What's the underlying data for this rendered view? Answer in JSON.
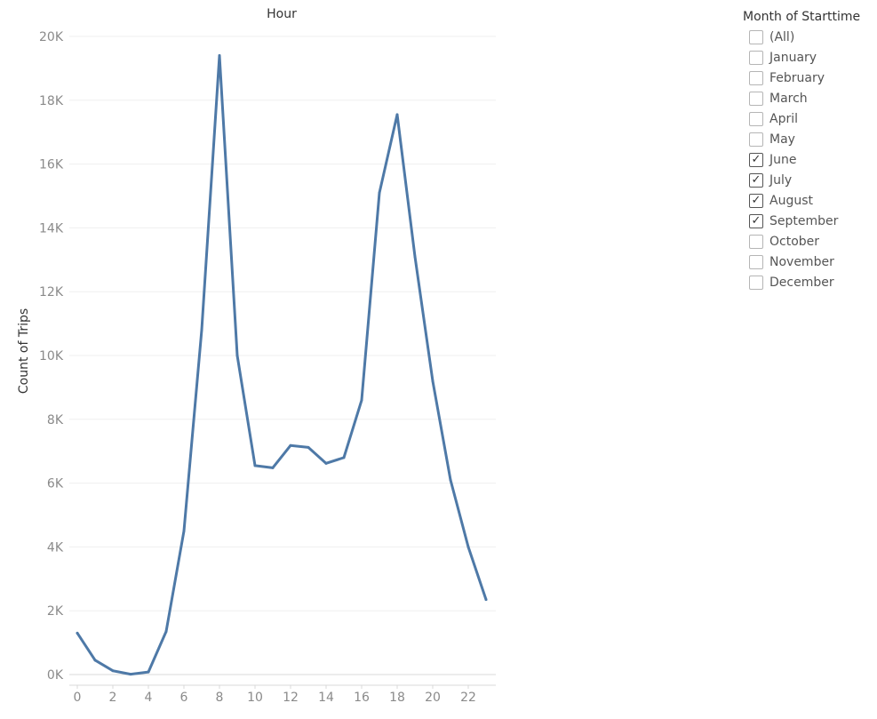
{
  "chart_data": {
    "type": "line",
    "title": "Hour",
    "xlabel": "Hour",
    "ylabel": "Count of Trips",
    "x": [
      0,
      1,
      2,
      3,
      4,
      5,
      6,
      7,
      8,
      9,
      10,
      11,
      12,
      13,
      14,
      15,
      16,
      17,
      18,
      19,
      20,
      21,
      22,
      23
    ],
    "series": [
      {
        "name": "Count of Trips",
        "color": "#4e79a7",
        "values": [
          1300,
          450,
          120,
          10,
          80,
          1350,
          4500,
          10800,
          19400,
          10000,
          6550,
          6480,
          7180,
          7120,
          6620,
          6800,
          8600,
          15100,
          17550,
          13100,
          9200,
          6100,
          4000,
          2350
        ]
      }
    ],
    "ylim": [
      0,
      20000
    ],
    "yticks": [
      0,
      2000,
      4000,
      6000,
      8000,
      10000,
      12000,
      14000,
      16000,
      18000,
      20000
    ],
    "ytick_labels": [
      "0K",
      "2K",
      "4K",
      "6K",
      "8K",
      "10K",
      "12K",
      "14K",
      "16K",
      "18K",
      "20K"
    ],
    "xticks": [
      0,
      2,
      4,
      6,
      8,
      10,
      12,
      14,
      16,
      18,
      20,
      22
    ],
    "xtick_labels": [
      "0",
      "2",
      "4",
      "6",
      "8",
      "10",
      "12",
      "14",
      "16",
      "18",
      "20",
      "22"
    ],
    "grid": true
  },
  "filter": {
    "title": "Month of Starttime",
    "items": [
      {
        "label": "(All)",
        "checked": false,
        "mark": "✓"
      },
      {
        "label": "January",
        "checked": false,
        "mark": "✓"
      },
      {
        "label": "February",
        "checked": false,
        "mark": "✓"
      },
      {
        "label": "March",
        "checked": false,
        "mark": "✓"
      },
      {
        "label": "April",
        "checked": false,
        "mark": "✓"
      },
      {
        "label": "May",
        "checked": false,
        "mark": "✓"
      },
      {
        "label": "June",
        "checked": true,
        "mark": "✓"
      },
      {
        "label": "July",
        "checked": true,
        "mark": "✓"
      },
      {
        "label": "August",
        "checked": true,
        "mark": "✓"
      },
      {
        "label": "September",
        "checked": true,
        "mark": "✓"
      },
      {
        "label": "October",
        "checked": false,
        "mark": "✓"
      },
      {
        "label": "November",
        "checked": false,
        "mark": "✓"
      },
      {
        "label": "December",
        "checked": false,
        "mark": "✓"
      }
    ]
  }
}
